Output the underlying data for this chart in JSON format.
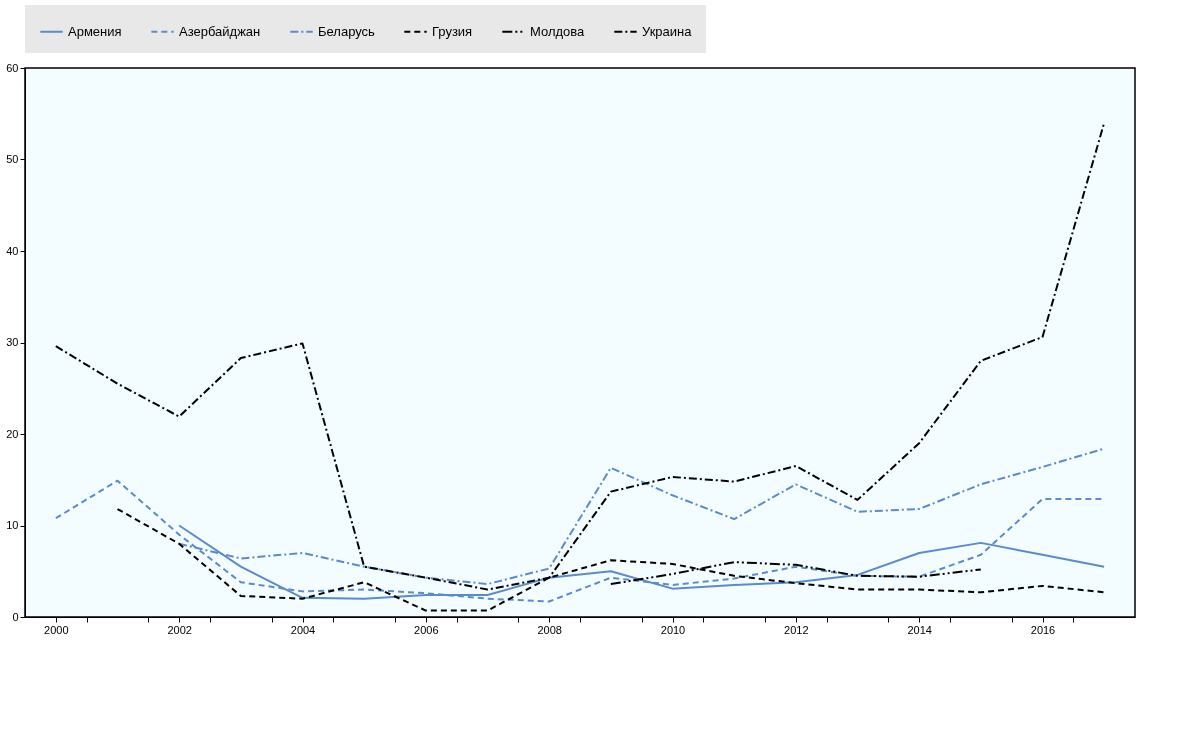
{
  "chart_data": {
    "type": "line",
    "legend": "top",
    "grid": false,
    "marker": "none",
    "xlim": [
      1999.5,
      2017.5
    ],
    "xticks": [
      2000,
      2002,
      2004,
      2006,
      2008,
      2010,
      2012,
      2014,
      2016,
      {
        "value": 2000.5,
        "label": null
      },
      {
        "value": 2001.5,
        "label": null
      },
      {
        "value": 2002.5,
        "label": null
      },
      {
        "value": 2003.5,
        "label": null
      },
      {
        "value": 2004.5,
        "label": null
      },
      {
        "value": 2005.5,
        "label": null
      },
      {
        "value": 2006.5,
        "label": null
      },
      {
        "value": 2007.5,
        "label": null
      },
      {
        "value": 2008.5,
        "label": null
      },
      {
        "value": 2009.5,
        "label": null
      },
      {
        "value": 2010.5,
        "label": null
      },
      {
        "value": 2011.5,
        "label": null
      },
      {
        "value": 2012.5,
        "label": null
      },
      {
        "value": 2013.5,
        "label": null
      },
      {
        "value": 2014.5,
        "label": null
      },
      {
        "value": 2015.5,
        "label": null
      },
      {
        "value": 2016.5,
        "label": null
      }
    ],
    "ylim": [
      0,
      60
    ],
    "yticks": [
      0,
      10,
      20,
      30,
      40,
      50,
      60
    ],
    "series": [
      {
        "name": "Армения",
        "color": "#5b8bc9",
        "line_style": "solid",
        "x": [
          2002,
          2003,
          2004,
          2005,
          2006,
          2007,
          2008,
          2009,
          2010,
          2011,
          2012,
          2013,
          2014,
          2015,
          2016,
          2017
        ],
        "values": [
          10,
          5.5,
          2.1,
          2.0,
          2.4,
          2.4,
          4.3,
          5.0,
          3.1,
          3.5,
          3.8,
          4.6,
          7.0,
          8.1,
          6.8,
          5.5
        ]
      },
      {
        "name": "Азербайджан",
        "color": "#5b8bc9",
        "line_style": "dashed",
        "x": [
          2000,
          2001,
          2002,
          2003,
          2004,
          2005,
          2006,
          2007,
          2008,
          2009,
          2010,
          2011,
          2012,
          2013,
          2014,
          2015,
          2016,
          2017
        ],
        "values": [
          10.8,
          14.9,
          9.0,
          3.8,
          2.8,
          3.0,
          2.6,
          2.0,
          1.7,
          4.3,
          3.5,
          4.2,
          5.5,
          4.5,
          4.4,
          6.8,
          12.9,
          12.9
        ]
      },
      {
        "name": "Беларусь",
        "color": "#5b8bc9",
        "line_style": "dashdot",
        "x": [
          2002,
          2003,
          2004,
          2005,
          2006,
          2007,
          2008,
          2009,
          2010,
          2011,
          2012,
          2013,
          2014,
          2015,
          2016,
          2017
        ],
        "values": [
          8.0,
          6.4,
          7.0,
          5.5,
          4.3,
          3.6,
          5.3,
          16.3,
          13.3,
          10.7,
          14.5,
          11.5,
          11.8,
          14.5,
          16.4,
          18.4
        ]
      },
      {
        "name": "Грузия",
        "color": "#000000",
        "line_style": "dashed",
        "x": [
          2001,
          2002,
          2003,
          2004,
          2005,
          2006,
          2007,
          2008,
          2009,
          2010,
          2011,
          2012,
          2013,
          2014,
          2015,
          2016,
          2017
        ],
        "values": [
          11.8,
          8.0,
          2.3,
          2.0,
          3.8,
          0.7,
          0.7,
          4.3,
          6.2,
          5.8,
          4.5,
          3.7,
          3.0,
          3.0,
          2.7,
          3.4,
          2.7
        ]
      },
      {
        "name": "Молдова",
        "color": "#000000",
        "line_style": "dashdotdot",
        "x": [
          2009,
          2010,
          2011,
          2012,
          2013,
          2014,
          2015
        ],
        "values": [
          3.6,
          4.7,
          6.0,
          5.7,
          4.5,
          4.4,
          5.2
        ]
      },
      {
        "name": "Украина",
        "color": "#000000",
        "line_style": "dashdot",
        "x": [
          2000,
          2001,
          2002,
          2003,
          2004,
          2005,
          2006,
          2007,
          2008,
          2009,
          2010,
          2011,
          2012,
          2013,
          2014,
          2015,
          2016,
          2017
        ],
        "values": [
          29.6,
          25.5,
          21.9,
          28.3,
          29.9,
          5.5,
          4.3,
          3.0,
          4.3,
          13.7,
          15.3,
          14.8,
          16.5,
          12.8,
          19.0,
          28.0,
          30.6,
          54.0
        ]
      }
    ]
  }
}
